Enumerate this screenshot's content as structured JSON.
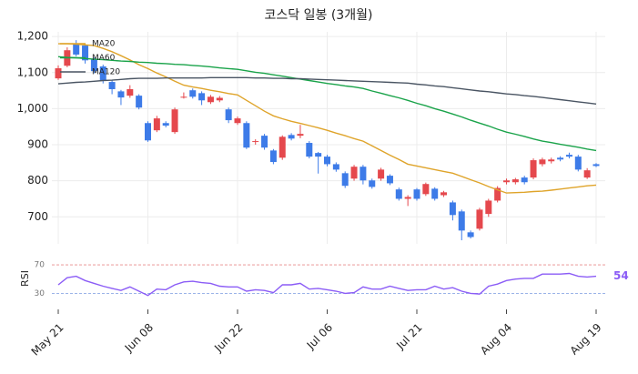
{
  "chart_data": [
    {
      "type": "candlestick",
      "title": "코스닥 일봉 (3개월)",
      "open": [
        1084,
        1119,
        1180,
        1175,
        1137,
        1117,
        1074,
        1048,
        1036,
        1036,
        960,
        940,
        960,
        935,
        1031,
        1051,
        1043,
        1018,
        1023,
        998,
        960,
        960,
        908,
        925,
        884,
        864,
        927,
        925,
        905,
        877,
        867,
        846,
        821,
        806,
        839,
        801,
        806,
        814,
        776,
        750,
        776,
        763,
        778,
        760,
        740,
        715,
        657,
        667,
        708,
        745,
        796,
        796,
        809,
        809,
        846,
        854,
        864,
        872,
        867,
        809,
        846
      ],
      "high": [
        1120,
        1170,
        1190,
        1180,
        1142,
        1122,
        1078,
        1052,
        1065,
        1040,
        965,
        980,
        965,
        1003,
        1045,
        1056,
        1048,
        1038,
        1035,
        1003,
        978,
        965,
        915,
        930,
        888,
        926,
        932,
        955,
        910,
        880,
        872,
        851,
        826,
        844,
        844,
        806,
        836,
        818,
        781,
        760,
        780,
        795,
        782,
        772,
        745,
        720,
        662,
        725,
        750,
        785,
        806,
        808,
        814,
        862,
        864,
        864,
        868,
        878,
        872,
        835,
        849
      ],
      "low": [
        1080,
        1115,
        1145,
        1125,
        1098,
        1070,
        1040,
        1010,
        1030,
        998,
        908,
        935,
        948,
        930,
        1028,
        1028,
        1010,
        1013,
        1018,
        960,
        955,
        888,
        900,
        886,
        846,
        858,
        912,
        918,
        862,
        820,
        840,
        825,
        780,
        800,
        790,
        778,
        800,
        788,
        745,
        730,
        745,
        758,
        745,
        755,
        690,
        635,
        640,
        662,
        700,
        740,
        790,
        790,
        790,
        804,
        840,
        848,
        854,
        862,
        826,
        805,
        838
      ],
      "close": [
        1112,
        1162,
        1150,
        1134,
        1104,
        1079,
        1054,
        1031,
        1054,
        1003,
        912,
        973,
        953,
        998,
        1033,
        1033,
        1023,
        1033,
        1030,
        968,
        973,
        892,
        910,
        892,
        852,
        922,
        917,
        930,
        867,
        867,
        846,
        831,
        786,
        839,
        801,
        783,
        831,
        793,
        750,
        755,
        750,
        791,
        750,
        768,
        705,
        662,
        644,
        720,
        745,
        780,
        801,
        804,
        796,
        857,
        859,
        859,
        859,
        867,
        831,
        829,
        841
      ],
      "up_color": "#e5484d",
      "down_color": "#3d7be8",
      "series": [
        {
          "name": "MA20",
          "color": "#dfa42a",
          "values": [
            1180,
            1180,
            1179,
            1177,
            1175,
            1167,
            1158,
            1147,
            1135,
            1122,
            1111,
            1099,
            1088,
            1076,
            1065,
            1060,
            1056,
            1051,
            1047,
            1042,
            1038,
            1023,
            1008,
            993,
            980,
            972,
            965,
            959,
            953,
            947,
            940,
            932,
            925,
            917,
            910,
            897,
            884,
            871,
            859,
            846,
            841,
            836,
            831,
            826,
            821,
            812,
            803,
            794,
            784,
            775,
            766,
            767,
            768,
            770,
            771,
            774,
            777,
            780,
            783,
            786,
            788
          ]
        },
        {
          "name": "MA60",
          "color": "#1aa34a",
          "values": [
            1144,
            1142,
            1141,
            1139,
            1137,
            1136,
            1134,
            1132,
            1131,
            1129,
            1128,
            1126,
            1125,
            1123,
            1122,
            1120,
            1118,
            1116,
            1113,
            1111,
            1109,
            1105,
            1101,
            1098,
            1094,
            1090,
            1086,
            1082,
            1078,
            1074,
            1070,
            1067,
            1063,
            1060,
            1056,
            1049,
            1043,
            1036,
            1030,
            1023,
            1015,
            1008,
            1000,
            993,
            985,
            977,
            968,
            960,
            952,
            943,
            935,
            929,
            923,
            916,
            910,
            906,
            901,
            897,
            893,
            888,
            884
          ]
        },
        {
          "name": "MA120",
          "color": "#4a5563",
          "values": [
            1069,
            1071,
            1073,
            1074,
            1076,
            1078,
            1079,
            1081,
            1083,
            1084,
            1084,
            1084,
            1085,
            1085,
            1085,
            1085,
            1085,
            1086,
            1086,
            1086,
            1086,
            1086,
            1085,
            1085,
            1084,
            1084,
            1083,
            1083,
            1082,
            1081,
            1080,
            1079,
            1078,
            1077,
            1076,
            1075,
            1074,
            1073,
            1072,
            1071,
            1068,
            1066,
            1063,
            1061,
            1058,
            1055,
            1052,
            1049,
            1047,
            1044,
            1041,
            1039,
            1036,
            1034,
            1031,
            1028,
            1025,
            1022,
            1019,
            1016,
            1013
          ]
        }
      ],
      "ylim": [
        625,
        1213
      ],
      "yticks": [
        {
          "value": 700,
          "label": "700"
        },
        {
          "value": 800,
          "label": "800"
        },
        {
          "value": 900,
          "label": "900"
        },
        {
          "value": 1000,
          "label": "1,000"
        },
        {
          "value": 1100,
          "label": "1,100"
        },
        {
          "value": 1200,
          "label": "1,200"
        }
      ],
      "grid": true,
      "legend": "upper left"
    },
    {
      "type": "line",
      "ylabel": "RSI",
      "categories": [
        "May 21",
        null,
        null,
        null,
        null,
        null,
        null,
        null,
        null,
        null,
        "Jun 08",
        null,
        null,
        null,
        null,
        null,
        null,
        null,
        null,
        null,
        "Jun 22",
        null,
        null,
        null,
        null,
        null,
        null,
        null,
        null,
        null,
        "Jul 06",
        null,
        null,
        null,
        null,
        null,
        null,
        null,
        null,
        null,
        "Jul 21",
        null,
        null,
        null,
        null,
        null,
        null,
        null,
        null,
        null,
        "Aug 04",
        null,
        null,
        null,
        null,
        null,
        null,
        null,
        null,
        null,
        "Aug 19"
      ],
      "color": "#8b5cf6",
      "values": [
        42,
        52,
        54,
        48,
        44,
        40,
        37,
        34,
        39,
        33,
        27,
        36,
        35,
        42,
        46,
        47,
        45,
        44,
        40,
        39,
        39,
        33,
        35,
        34,
        31,
        42,
        42,
        44,
        36,
        37,
        35,
        33,
        30,
        31,
        39,
        36,
        36,
        40,
        37,
        34,
        35,
        35,
        40,
        36,
        38,
        33,
        30,
        29,
        40,
        43,
        48,
        50,
        51,
        51,
        57,
        57,
        57,
        58,
        54,
        53,
        54
      ],
      "ylim": [
        10,
        88
      ],
      "yticks": [
        30,
        70
      ],
      "tick_colors": [
        "#7b9be0",
        "#e88b8b"
      ]
    }
  ]
}
